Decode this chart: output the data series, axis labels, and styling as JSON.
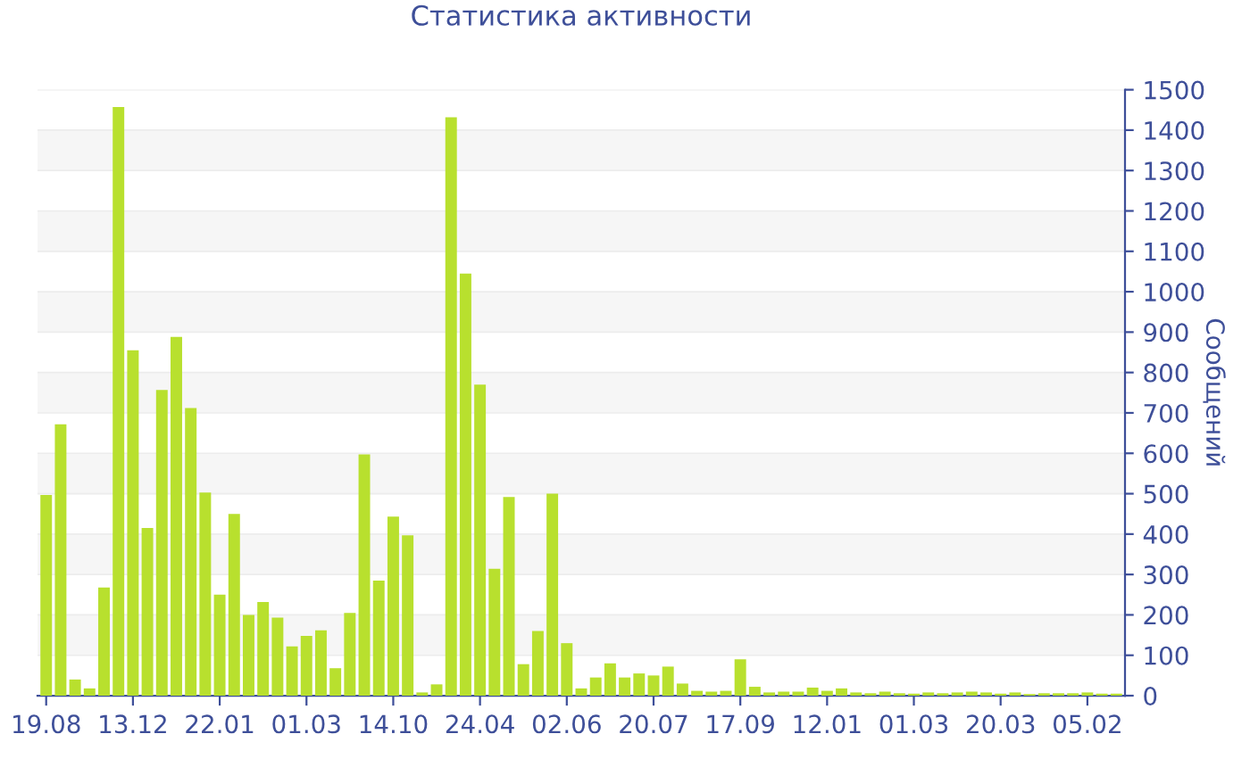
{
  "chart_data": {
    "type": "bar",
    "title": "Статистика активности",
    "ylabel": "Сообщений",
    "categories": [
      "19.08",
      null,
      null,
      null,
      null,
      null,
      "13.12",
      null,
      null,
      null,
      null,
      null,
      "22.01",
      null,
      null,
      null,
      null,
      null,
      "01.03",
      null,
      null,
      null,
      null,
      null,
      "14.10",
      null,
      null,
      null,
      null,
      null,
      "24.04",
      null,
      null,
      null,
      null,
      null,
      "02.06",
      null,
      null,
      null,
      null,
      null,
      "20.07",
      null,
      null,
      null,
      null,
      null,
      "17.09",
      null,
      null,
      null,
      null,
      null,
      "12.01",
      null,
      null,
      null,
      null,
      null,
      "01.03",
      null,
      null,
      null,
      null,
      null,
      "20.03",
      null,
      null,
      null,
      null,
      null,
      "05.02",
      null,
      null
    ],
    "values": [
      497,
      672,
      40,
      18,
      268,
      1457,
      855,
      415,
      757,
      888,
      712,
      503,
      250,
      450,
      200,
      232,
      193,
      122,
      148,
      162,
      68,
      205,
      597,
      285,
      443,
      397,
      8,
      28,
      1432,
      1045,
      770,
      314,
      492,
      78,
      160,
      500,
      130,
      18,
      45,
      80,
      45,
      55,
      50,
      72,
      30,
      12,
      10,
      12,
      90,
      22,
      8,
      10,
      10,
      20,
      12,
      18,
      8,
      6,
      10,
      6,
      5,
      8,
      6,
      8,
      10,
      8,
      5,
      8,
      4,
      6,
      6,
      6,
      8,
      5,
      5
    ],
    "color": "#b8e02e",
    "ylim": [
      0,
      1500
    ],
    "yticks": [
      0,
      100,
      200,
      300,
      400,
      500,
      600,
      700,
      800,
      900,
      1000,
      1100,
      1200,
      1300,
      1400,
      1500
    ],
    "grid": "y",
    "legend": false
  }
}
